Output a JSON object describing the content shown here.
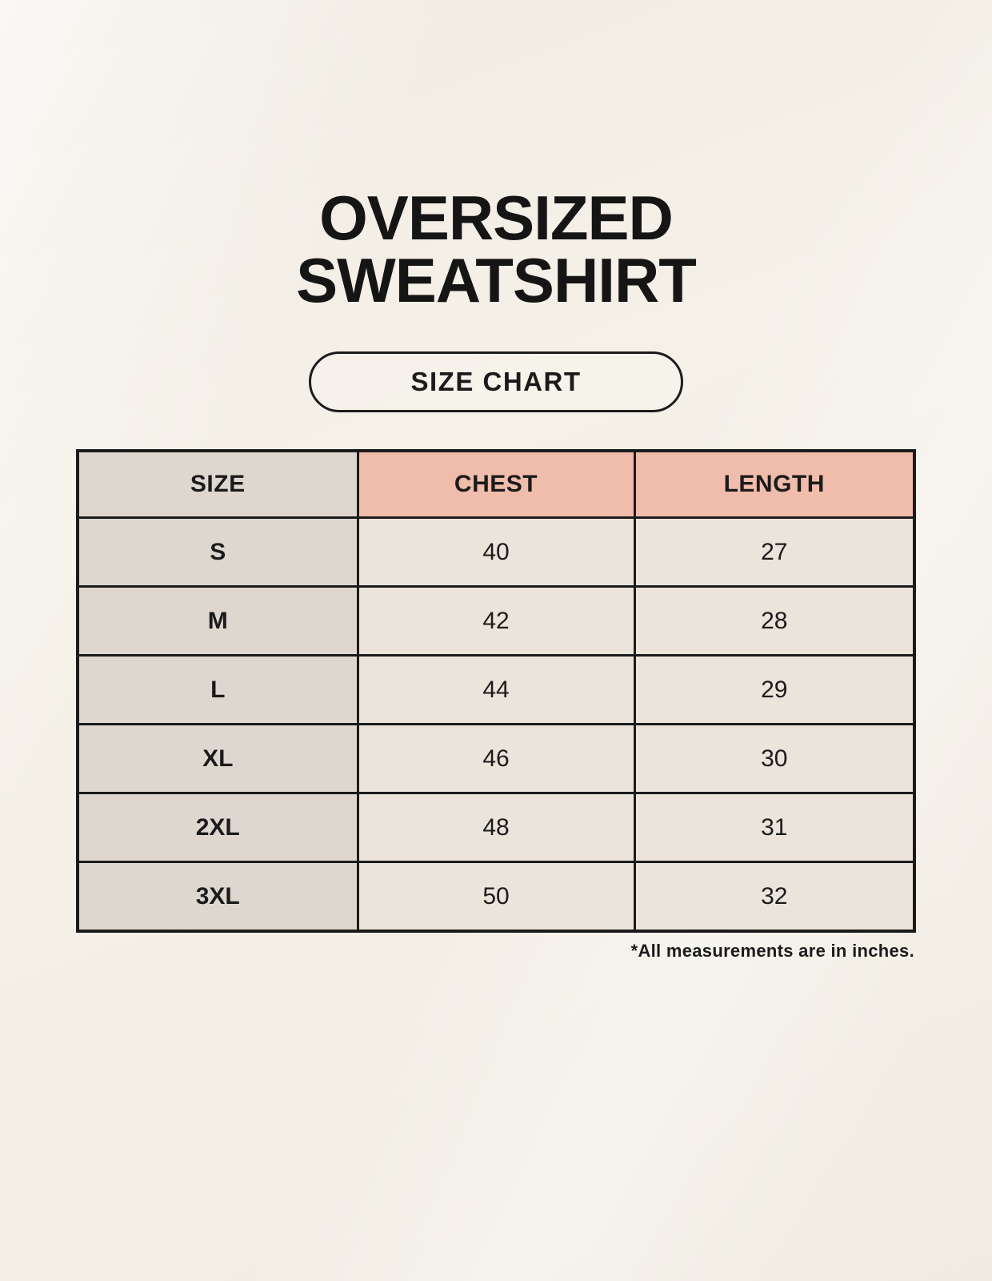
{
  "page": {
    "title_line1": "OVERSIZED",
    "title_line2": "SWEATSHIRT",
    "badge_label": "SIZE CHART"
  },
  "colors": {
    "background_cream": "#f5f1e9",
    "table_border": "#1b1b1b",
    "header_pink": "#f0bcab",
    "size_column_gray": "#ded7d0",
    "data_cell_cream": "#eae4da",
    "text": "#1b1b1b"
  },
  "chart_data": {
    "type": "table",
    "title": "OVERSIZED SWEATSHIRT — SIZE CHART",
    "columns": [
      "SIZE",
      "CHEST",
      "LENGTH"
    ],
    "rows": [
      [
        "S",
        "40",
        "27"
      ],
      [
        "M",
        "42",
        "28"
      ],
      [
        "L",
        "44",
        "29"
      ],
      [
        "XL",
        "46",
        "30"
      ],
      [
        "2XL",
        "48",
        "31"
      ],
      [
        "3XL",
        "50",
        "32"
      ]
    ],
    "units": "inches",
    "note": "*All measurements are in inches."
  }
}
